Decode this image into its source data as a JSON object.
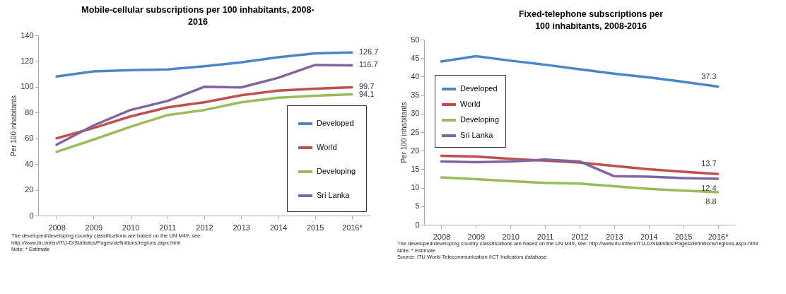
{
  "chart_data": [
    {
      "type": "line",
      "title": "Mobile-cellular subscriptions per 100 inhabitants, 2008-2016",
      "ylabel": "Per 100 inhabitants",
      "categories": [
        "2008",
        "2009",
        "2010",
        "2011",
        "2012",
        "2013",
        "2014",
        "2015",
        "2016*"
      ],
      "ylim": [
        0,
        140
      ],
      "yticks": [
        0,
        20,
        40,
        60,
        80,
        100,
        120,
        140
      ],
      "grid": false,
      "legend": "bottom right",
      "series": [
        {
          "name": "Developed",
          "color": "#4a86c8",
          "values": [
            108,
            112,
            113,
            113.5,
            116,
            119,
            123,
            126,
            126.7
          ],
          "value_labels": [
            null,
            null,
            null,
            null,
            null,
            null,
            null,
            null,
            "126.7"
          ]
        },
        {
          "name": "World",
          "color": "#c0504d",
          "values": [
            60,
            68,
            77,
            84,
            88,
            93.5,
            97,
            98.5,
            99.7
          ],
          "value_labels": [
            null,
            null,
            null,
            null,
            null,
            null,
            null,
            null,
            "99.7"
          ]
        },
        {
          "name": "Developing",
          "color": "#9bbb59",
          "values": [
            49.5,
            59,
            69,
            78,
            82,
            88,
            91.5,
            93,
            94.1
          ],
          "value_labels": [
            null,
            null,
            null,
            null,
            null,
            null,
            null,
            null,
            "94.1"
          ]
        },
        {
          "name": "Sri Lanka",
          "color": "#8064a2",
          "values": [
            55,
            70,
            82,
            89,
            100,
            99.5,
            107,
            117,
            116.7
          ],
          "value_labels": [
            null,
            null,
            null,
            null,
            null,
            null,
            null,
            null,
            "116.7"
          ]
        }
      ],
      "annotations": [
        "The developed/developing country classifications are based on the UN M49, see:",
        "http://www.itu.int/en/ITU-D/Statistics/Pages/definitions/regions.aspx.html",
        "Note: * Estimate"
      ]
    },
    {
      "type": "line",
      "title": "Fixed-telephone subscriptions per 100 inhabitants, 2008-2016",
      "ylabel": "Per 100 inhabitants",
      "categories": [
        "2008",
        "2009",
        "2010",
        "2011",
        "2012",
        "2013",
        "2014",
        "2015",
        "2016*"
      ],
      "ylim": [
        0,
        50
      ],
      "yticks": [
        0,
        5,
        10,
        15,
        20,
        25,
        30,
        35,
        40,
        45,
        50
      ],
      "grid": false,
      "legend": "top left",
      "series": [
        {
          "name": "Developed",
          "color": "#4a86c8",
          "values": [
            44.1,
            45.5,
            44.3,
            43.2,
            42.0,
            40.8,
            39.8,
            38.6,
            37.3
          ],
          "value_labels": [
            null,
            null,
            null,
            null,
            null,
            null,
            null,
            null,
            "37.3"
          ]
        },
        {
          "name": "World",
          "color": "#c0504d",
          "values": [
            18.6,
            18.4,
            17.8,
            17.3,
            16.8,
            15.9,
            15.0,
            14.3,
            13.7
          ],
          "value_labels": [
            null,
            null,
            null,
            null,
            null,
            null,
            null,
            null,
            "13.7"
          ]
        },
        {
          "name": "Developing",
          "color": "#9bbb59",
          "values": [
            12.8,
            12.3,
            11.8,
            11.3,
            11.1,
            10.4,
            9.7,
            9.2,
            8.8
          ],
          "value_labels": [
            null,
            null,
            null,
            null,
            null,
            null,
            null,
            null,
            "8.8"
          ]
        },
        {
          "name": "Sri Lanka",
          "color": "#8064a2",
          "values": [
            17.1,
            16.9,
            17.1,
            17.6,
            17.1,
            13.1,
            13.0,
            12.6,
            12.4
          ],
          "value_labels": [
            null,
            null,
            null,
            null,
            null,
            null,
            null,
            null,
            "12.4"
          ]
        }
      ],
      "annotations": [
        "The developed/developing country classifications are based on the UN M49, see: http://www.itu.int/en/ITU-D/Statistics/Pages/definitions/regions.aspx.html",
        "Note: * Estimate",
        "Source: ITU World Telecommunication /ICT Indicators database"
      ]
    }
  ]
}
